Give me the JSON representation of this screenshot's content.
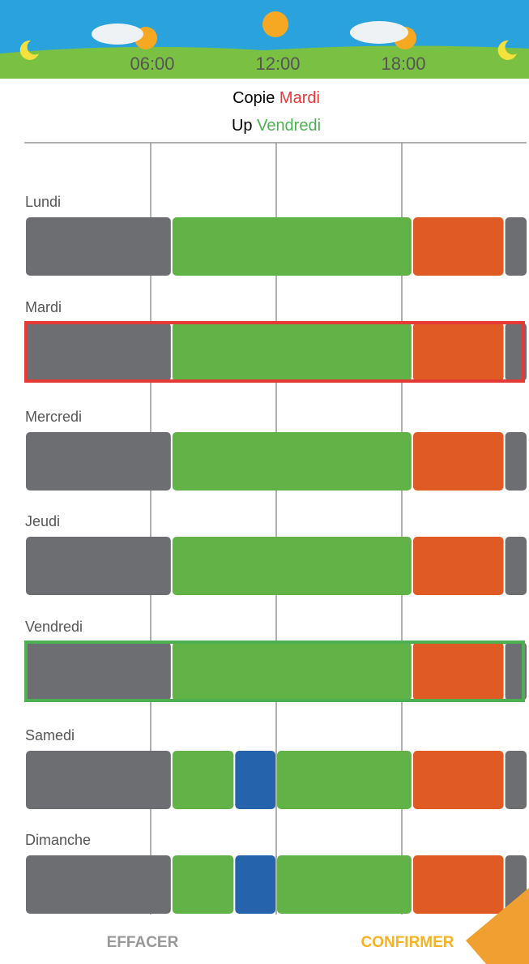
{
  "header": {
    "time_labels": [
      "06:00",
      "12:00",
      "18:00"
    ],
    "hour_range": [
      0,
      24
    ],
    "gridlines": [
      6,
      12,
      18
    ]
  },
  "title": {
    "line1": {
      "text": "Copie",
      "day": "Mardi",
      "color": "#e53935"
    },
    "line2": {
      "text": "Up",
      "day": "Vendredi",
      "color": "#4caf50"
    }
  },
  "days": [
    {
      "label": "Lundi",
      "segments": [
        {
          "start": 0,
          "end": 7,
          "color": "#6d6e72"
        },
        {
          "start": 7,
          "end": 18.5,
          "color": "#62b347"
        },
        {
          "start": 18.5,
          "end": 22.9,
          "color": "#e05a24"
        },
        {
          "start": 22.9,
          "end": 24,
          "color": "#6d6e72"
        }
      ]
    },
    {
      "label": "Mardi",
      "outline": "#e53935",
      "segments": [
        {
          "start": 0,
          "end": 7,
          "color": "#6d6e72"
        },
        {
          "start": 7,
          "end": 18.5,
          "color": "#62b347"
        },
        {
          "start": 18.5,
          "end": 22.9,
          "color": "#e05a24"
        },
        {
          "start": 22.9,
          "end": 24,
          "color": "#6d6e72"
        }
      ]
    },
    {
      "label": "Mercredi",
      "segments": [
        {
          "start": 0,
          "end": 7,
          "color": "#6d6e72"
        },
        {
          "start": 7,
          "end": 18.5,
          "color": "#62b347"
        },
        {
          "start": 18.5,
          "end": 22.9,
          "color": "#e05a24"
        },
        {
          "start": 22.9,
          "end": 24,
          "color": "#6d6e72"
        }
      ]
    },
    {
      "label": "Jeudi",
      "segments": [
        {
          "start": 0,
          "end": 7,
          "color": "#6d6e72"
        },
        {
          "start": 7,
          "end": 18.5,
          "color": "#62b347"
        },
        {
          "start": 18.5,
          "end": 22.9,
          "color": "#e05a24"
        },
        {
          "start": 22.9,
          "end": 24,
          "color": "#6d6e72"
        }
      ]
    },
    {
      "label": "Vendredi",
      "outline": "#4caf50",
      "segments": [
        {
          "start": 0,
          "end": 7,
          "color": "#6d6e72"
        },
        {
          "start": 7,
          "end": 18.5,
          "color": "#62b347"
        },
        {
          "start": 18.5,
          "end": 22.9,
          "color": "#e05a24"
        },
        {
          "start": 22.9,
          "end": 24,
          "color": "#6d6e72"
        }
      ]
    },
    {
      "label": "Samedi",
      "segments": [
        {
          "start": 0,
          "end": 7,
          "color": "#6d6e72"
        },
        {
          "start": 7,
          "end": 10,
          "color": "#62b347"
        },
        {
          "start": 10,
          "end": 12,
          "color": "#2563ad"
        },
        {
          "start": 12,
          "end": 18.5,
          "color": "#62b347"
        },
        {
          "start": 18.5,
          "end": 22.9,
          "color": "#e05a24"
        },
        {
          "start": 22.9,
          "end": 24,
          "color": "#6d6e72"
        }
      ]
    },
    {
      "label": "Dimanche",
      "segments": [
        {
          "start": 0,
          "end": 7,
          "color": "#6d6e72"
        },
        {
          "start": 7,
          "end": 10,
          "color": "#62b347"
        },
        {
          "start": 10,
          "end": 12,
          "color": "#2563ad"
        },
        {
          "start": 12,
          "end": 18.5,
          "color": "#62b347"
        },
        {
          "start": 18.5,
          "end": 22.9,
          "color": "#e05a24"
        },
        {
          "start": 22.9,
          "end": 24,
          "color": "#6d6e72"
        }
      ]
    }
  ],
  "buttons": {
    "clear": "EFFACER",
    "confirm": "CONFIRMER"
  }
}
